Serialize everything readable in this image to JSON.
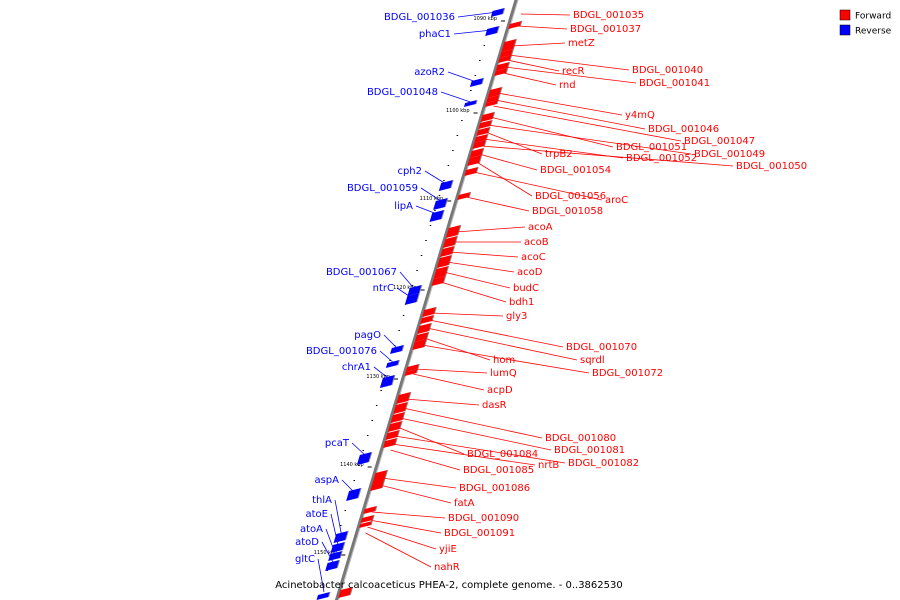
{
  "caption": "Acinetobacter calcoaceticus PHEA-2, complete genome. - 0..3862530",
  "legend": [
    {
      "label": "Forward",
      "color": "#ff0000"
    },
    {
      "label": "Reverse",
      "color": "#0000ff"
    }
  ],
  "ticks": [
    "1090 kbp",
    "1100 kbp",
    "1110 kbp",
    "1120 kbp",
    "1130 kbp",
    "1140 kbp",
    "1150 kbp"
  ],
  "reverse_genes": [
    "BDGL_001036",
    "phaC1",
    "azoR2",
    "BDGL_001048",
    "cph2",
    "BDGL_001059",
    "lipA",
    "BDGL_001067",
    "ntrC",
    "pagO",
    "BDGL_001076",
    "chrA1",
    "pcaT",
    "aspA",
    "thlA",
    "atoE",
    "atoA",
    "atoD",
    "gltC"
  ],
  "forward_genes": [
    "BDGL_001035",
    "BDGL_001037",
    "metZ",
    "BDGL_001040",
    "recR",
    "BDGL_001041",
    "rnd",
    "y4mQ",
    "BDGL_001046",
    "BDGL_001047",
    "BDGL_001051",
    "BDGL_001049",
    "trpB2",
    "BDGL_001052",
    "BDGL_001050",
    "BDGL_001054",
    "BDGL_001056",
    "aroC",
    "BDGL_001058",
    "acoA",
    "acoB",
    "acoC",
    "acoD",
    "budC",
    "bdh1",
    "gly3",
    "BDGL_001070",
    "sqrdl",
    "hom",
    "BDGL_001072",
    "lumQ",
    "acpD",
    "dasR",
    "BDGL_001080",
    "BDGL_001081",
    "BDGL_001084",
    "BDGL_001082",
    "nrtB",
    "BDGL_001085",
    "BDGL_001086",
    "fatA",
    "BDGL_001090",
    "BDGL_001091",
    "yjiE",
    "nahR"
  ]
}
